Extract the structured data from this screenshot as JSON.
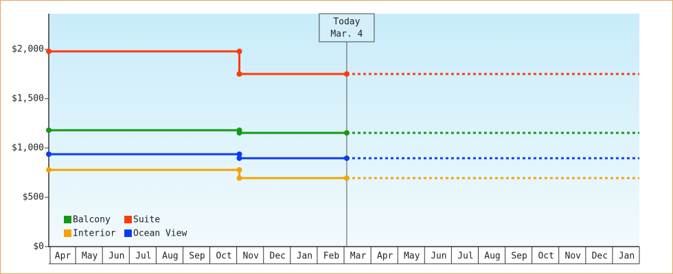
{
  "chart_data": {
    "type": "step-line",
    "categories": [
      "Apr",
      "May",
      "Jun",
      "Jul",
      "Aug",
      "Sep",
      "Oct",
      "Nov",
      "Dec",
      "Jan",
      "Feb",
      "Mar",
      "Apr",
      "May",
      "Jun",
      "Jul",
      "Aug",
      "Sep",
      "Oct",
      "Nov",
      "Dec",
      "Jan"
    ],
    "xlim": [
      0,
      22
    ],
    "ylim": [
      0,
      2361
    ],
    "yticks": [
      {
        "value": 0,
        "label": "$0"
      },
      {
        "value": 500,
        "label": "$500"
      },
      {
        "value": 1000,
        "label": "$1,000"
      },
      {
        "value": 1500,
        "label": "$1,500"
      },
      {
        "value": 2000,
        "label": "$2,000"
      }
    ],
    "annotation": {
      "lines": [
        "Today",
        "Mar. 4"
      ],
      "x": 11.1
    },
    "series": [
      {
        "name": "Balcony",
        "color": "#129a12",
        "x": [
          0,
          7.1,
          7.1,
          11.1
        ],
        "values": [
          1180,
          1180,
          1153,
          1153
        ]
      },
      {
        "name": "Suite",
        "color": "#ff3a0a",
        "x": [
          0,
          7.1,
          7.1,
          11.1
        ],
        "values": [
          1979,
          1979,
          1750,
          1750
        ]
      },
      {
        "name": "Interior",
        "color": "#f5a300",
        "x": [
          0,
          7.1,
          7.1,
          11.1
        ],
        "values": [
          778,
          778,
          694,
          694
        ]
      },
      {
        "name": "Ocean View",
        "color": "#0a3cf5",
        "x": [
          0,
          7.1,
          7.1,
          11.1
        ],
        "values": [
          937,
          937,
          896,
          896
        ]
      }
    ]
  }
}
